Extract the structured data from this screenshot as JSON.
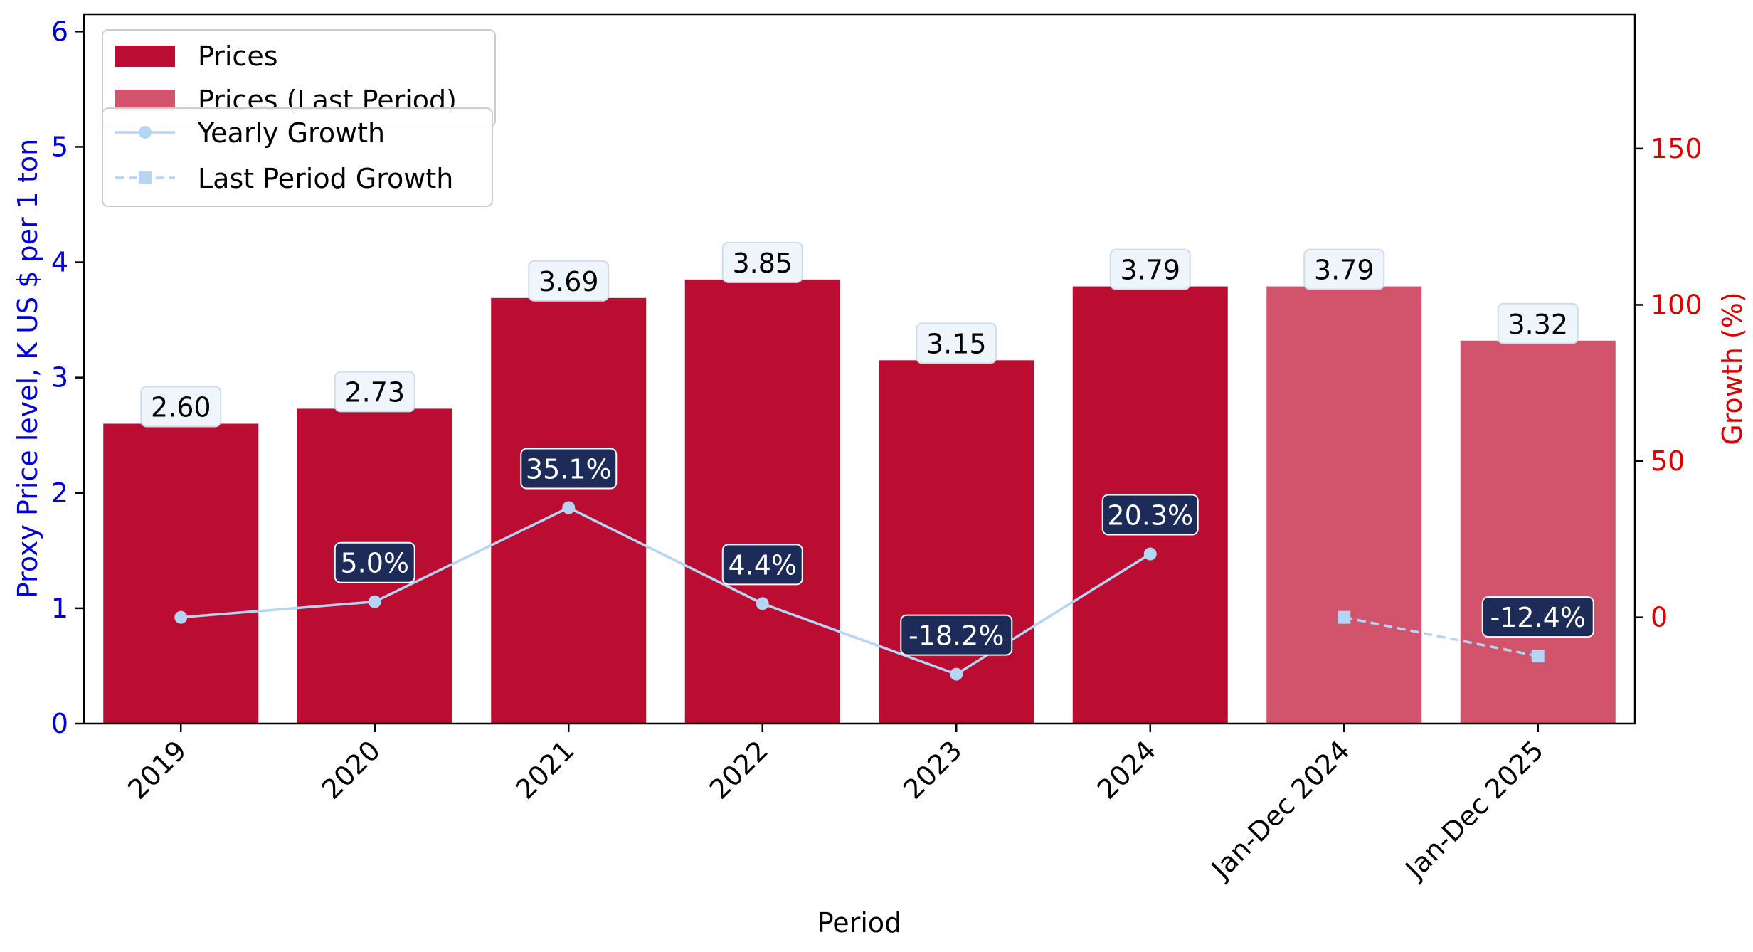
{
  "chart_data": {
    "type": "bar",
    "categories": [
      "2019",
      "2020",
      "2021",
      "2022",
      "2023",
      "2024",
      "Jan-Dec 2024",
      "Jan-Dec 2025"
    ],
    "prices": [
      2.6,
      2.73,
      3.69,
      3.85,
      3.15,
      3.79,
      3.79,
      3.32
    ],
    "price_labels": [
      "2.60",
      "2.73",
      "3.69",
      "3.85",
      "3.15",
      "3.79",
      "3.79",
      "3.32"
    ],
    "last_period_start_index": 6,
    "yearly_growth": {
      "indices": [
        0,
        1,
        2,
        3,
        4,
        5
      ],
      "values": [
        0,
        5.0,
        35.1,
        4.4,
        -18.2,
        20.3
      ],
      "labels": [
        "",
        "5.0%",
        "35.1%",
        "4.4%",
        "-18.2%",
        "20.3%"
      ]
    },
    "last_period_growth": {
      "indices": [
        6,
        7
      ],
      "values": [
        0,
        -12.4
      ],
      "labels": [
        "",
        "-12.4%"
      ]
    },
    "xlabel": "Period",
    "ylabel_left": "Proxy Price level, K US $ per 1 ton",
    "ylabel_right": "Growth (%)",
    "ylim_left": [
      0,
      6.15
    ],
    "yticks_left": [
      0,
      1,
      2,
      3,
      4,
      5,
      6
    ],
    "ylim_right": [
      -34,
      193
    ],
    "yticks_right": [
      0,
      50,
      100,
      150
    ],
    "legend_placement": "top-left",
    "legend_bars": [
      "Prices",
      "Prices (Last Period)"
    ],
    "legend_lines": [
      "Yearly Growth",
      "Last Period Growth"
    ],
    "colors": {
      "bar": "#bb0c31",
      "bar_last": "#d1536c",
      "line": "#b6d4f4",
      "growth_label_bg": "#1c2b58",
      "price_label_bg": "#eef5fb",
      "left_axis": "#0000dd",
      "right_axis": "#e00000"
    }
  }
}
